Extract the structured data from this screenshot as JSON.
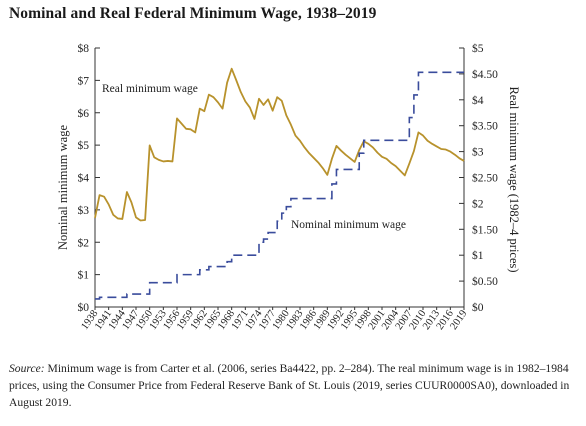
{
  "page": {
    "title": "Nominal and Real Federal Minimum Wage, 1938–2019"
  },
  "chart_data": {
    "type": "line",
    "title": "Nominal and Real Federal Minimum Wage, 1938–2019",
    "ylabel_left": "Nominal minimum wage",
    "ylabel_right": "Real minimum wage (1982–4 prices)",
    "ylim_left": [
      0,
      8
    ],
    "ylim_right": [
      0,
      5
    ],
    "yticks_left": [
      "$0",
      "$1",
      "$2",
      "$3",
      "$4",
      "$5",
      "$6",
      "$7",
      "$8"
    ],
    "yticks_right": [
      "$0",
      "$0.50",
      "$1",
      "$1.50",
      "$2",
      "$2.50",
      "$3",
      "$3.50",
      "$4",
      "$4.50",
      "$5"
    ],
    "xlim": [
      1938,
      2019
    ],
    "xticks": [
      "1938",
      "1941",
      "1944",
      "1947",
      "1950",
      "1953",
      "1956",
      "1959",
      "1962",
      "1965",
      "1968",
      "1971",
      "1974",
      "1977",
      "1980",
      "1983",
      "1986",
      "1989",
      "1992",
      "1995",
      "1998",
      "2001",
      "2004",
      "2007",
      "2010",
      "2013",
      "2016",
      "2019"
    ],
    "annotations": {
      "real": "Real minimum wage",
      "nominal": "Nominal minimum wage"
    },
    "series": [
      {
        "name": "Real minimum wage",
        "axis": "right",
        "color": "#b8922c",
        "style": "solid",
        "x": [
          1938,
          1939,
          1940,
          1941,
          1942,
          1943,
          1944,
          1945,
          1946,
          1947,
          1948,
          1949,
          1950,
          1951,
          1952,
          1953,
          1954,
          1955,
          1956,
          1957,
          1958,
          1959,
          1960,
          1961,
          1962,
          1963,
          1964,
          1965,
          1966,
          1967,
          1968,
          1969,
          1970,
          1971,
          1972,
          1973,
          1974,
          1975,
          1976,
          1977,
          1978,
          1979,
          1980,
          1981,
          1982,
          1983,
          1984,
          1985,
          1986,
          1987,
          1988,
          1989,
          1990,
          1991,
          1992,
          1993,
          1994,
          1995,
          1996,
          1997,
          1998,
          1999,
          2000,
          2001,
          2002,
          2003,
          2004,
          2005,
          2006,
          2007,
          2008,
          2009,
          2010,
          2011,
          2012,
          2013,
          2014,
          2015,
          2016,
          2017,
          2018,
          2019
        ],
        "values": [
          1.72,
          2.16,
          2.13,
          1.98,
          1.78,
          1.71,
          1.7,
          2.22,
          2.02,
          1.73,
          1.67,
          1.68,
          3.12,
          2.89,
          2.84,
          2.81,
          2.82,
          2.81,
          3.64,
          3.54,
          3.44,
          3.43,
          3.37,
          3.83,
          3.78,
          4.1,
          4.05,
          3.95,
          3.83,
          4.33,
          4.6,
          4.38,
          4.15,
          3.97,
          3.85,
          3.63,
          4.02,
          3.9,
          4.01,
          3.79,
          4.05,
          3.98,
          3.7,
          3.52,
          3.31,
          3.21,
          3.08,
          2.97,
          2.88,
          2.79,
          2.68,
          2.55,
          2.86,
          3.11,
          3.02,
          2.94,
          2.87,
          2.8,
          3.03,
          3.2,
          3.15,
          3.08,
          2.98,
          2.9,
          2.86,
          2.78,
          2.72,
          2.63,
          2.54,
          2.77,
          3.01,
          3.37,
          3.31,
          3.21,
          3.15,
          3.1,
          3.05,
          3.04,
          3.0,
          2.94,
          2.87,
          2.82
        ]
      },
      {
        "name": "Nominal minimum wage",
        "axis": "left",
        "color": "#3a4c9c",
        "style": "dashed",
        "x": [
          1938,
          1939,
          1940,
          1941,
          1942,
          1943,
          1944,
          1945,
          1946,
          1947,
          1948,
          1949,
          1950,
          1951,
          1952,
          1953,
          1954,
          1955,
          1956,
          1957,
          1958,
          1959,
          1960,
          1961,
          1962,
          1963,
          1964,
          1965,
          1966,
          1967,
          1968,
          1969,
          1970,
          1971,
          1972,
          1973,
          1974,
          1975,
          1976,
          1977,
          1978,
          1979,
          1980,
          1981,
          1982,
          1983,
          1984,
          1985,
          1986,
          1987,
          1988,
          1989,
          1990,
          1991,
          1992,
          1993,
          1994,
          1995,
          1996,
          1997,
          1998,
          1999,
          2000,
          2001,
          2002,
          2003,
          2004,
          2005,
          2006,
          2007,
          2008,
          2009,
          2010,
          2011,
          2012,
          2013,
          2014,
          2015,
          2016,
          2017,
          2018,
          2019
        ],
        "values": [
          0.25,
          0.3,
          0.3,
          0.3,
          0.3,
          0.3,
          0.3,
          0.4,
          0.4,
          0.4,
          0.4,
          0.4,
          0.75,
          0.75,
          0.75,
          0.75,
          0.75,
          0.75,
          1.0,
          1.0,
          1.0,
          1.0,
          1.0,
          1.15,
          1.15,
          1.25,
          1.25,
          1.25,
          1.25,
          1.4,
          1.6,
          1.6,
          1.6,
          1.6,
          1.6,
          1.6,
          2.0,
          2.1,
          2.3,
          2.3,
          2.65,
          2.9,
          3.1,
          3.35,
          3.35,
          3.35,
          3.35,
          3.35,
          3.35,
          3.35,
          3.35,
          3.35,
          3.8,
          4.25,
          4.25,
          4.25,
          4.25,
          4.25,
          4.75,
          5.15,
          5.15,
          5.15,
          5.15,
          5.15,
          5.15,
          5.15,
          5.15,
          5.15,
          5.15,
          5.85,
          6.55,
          7.25,
          7.25,
          7.25,
          7.25,
          7.25,
          7.25,
          7.25,
          7.25,
          7.25,
          7.25,
          7.25
        ]
      }
    ],
    "grid": false
  },
  "footer": {
    "source_label": "Source:",
    "source_text": " Minimum wage is from Carter et al. (2006, series Ba4422, pp. 2–284). The real minimum wage is in 1982–1984 prices, using the Consumer Price from Federal Reserve Bank of St. Louis (2019, series CUUR0000SA0), downloaded in August 2019."
  },
  "colors": {
    "real_line": "#b8922c",
    "nominal_line": "#3a4c9c",
    "axis": "#333333"
  }
}
